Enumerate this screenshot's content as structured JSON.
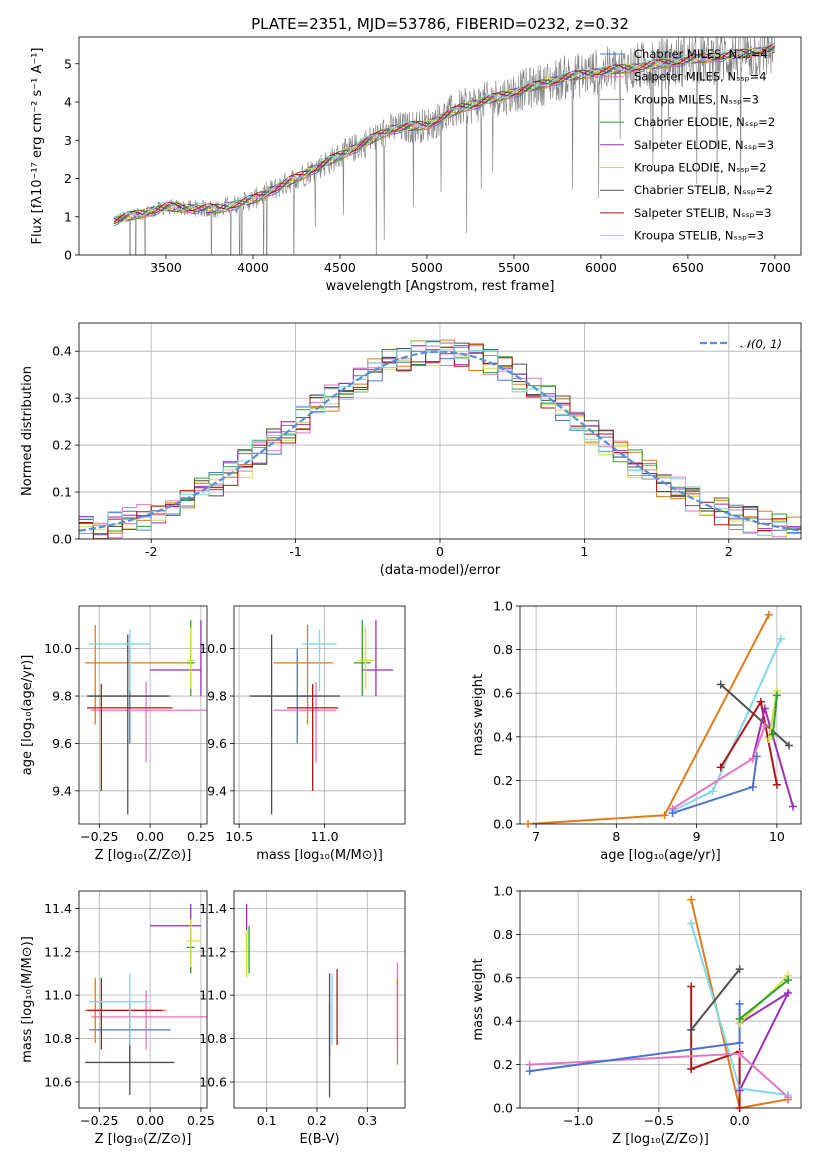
{
  "figure": {
    "title": "PLATE=2351, MJD=53786, FIBERID=0232, z=0.32"
  },
  "chart_data": [
    {
      "id": "spectrum",
      "type": "line",
      "xlabel": "wavelength [Angstrom, rest frame]",
      "ylabel": "Flux [fλ10⁻¹⁷ erg cm⁻² s⁻¹ A⁻¹]",
      "xlim": [
        3000,
        7150
      ],
      "ylim": [
        0,
        5.7
      ],
      "xticks": [
        3500,
        4000,
        4500,
        5000,
        5500,
        6000,
        6500,
        7000
      ],
      "yticks": [
        0,
        1,
        2,
        3,
        4,
        5
      ],
      "grid": false,
      "legend_location": "upper right",
      "data_color": "#808080",
      "data_curve": {
        "x": [
          3200,
          3500,
          3800,
          4000,
          4200,
          4500,
          4800,
          5000,
          5200,
          5500,
          5800,
          6000,
          6200,
          6500,
          6800,
          7000
        ],
        "y": [
          0.9,
          1.25,
          1.2,
          1.45,
          1.9,
          2.6,
          3.3,
          3.4,
          3.85,
          4.25,
          4.65,
          4.8,
          4.9,
          5.1,
          5.25,
          5.4
        ]
      },
      "series": [
        {
          "name": "Chabrier MILES, N_SSP=4",
          "color": "#4c72d0"
        },
        {
          "name": "Salpeter MILES, N_SSP=4",
          "color": "#e377c2"
        },
        {
          "name": "Kroupa MILES, N_SSP=3",
          "color": "#e07b1a"
        },
        {
          "name": "Chabrier ELODIE, N_SSP=2",
          "color": "#2ca02c"
        },
        {
          "name": "Salpeter ELODIE, N_SSP=3",
          "color": "#9b30b5"
        },
        {
          "name": "Kroupa ELODIE, N_SSP=2",
          "color": "#d4e04a"
        },
        {
          "name": "Chabrier STELIB, N_SSP=2",
          "color": "#505050"
        },
        {
          "name": "Salpeter STELIB, N_SSP=3",
          "color": "#b01515"
        },
        {
          "name": "Kroupa STELIB, N_SSP=3",
          "color": "#80d8e8"
        }
      ]
    },
    {
      "id": "residuals",
      "type": "line",
      "xlabel": "(data-model)/error",
      "ylabel": "Normed distribution",
      "xlim": [
        -2.5,
        2.5
      ],
      "ylim": [
        0,
        0.46
      ],
      "xticks": [
        -2,
        -1,
        0,
        1,
        2
      ],
      "yticks": [
        0.0,
        0.1,
        0.2,
        0.3,
        0.4
      ],
      "grid": true,
      "legend_location": "upper right",
      "reference": {
        "name": "𝒩(0, 1)",
        "mean": 0,
        "sigma": 1,
        "color": "#5b8fd6"
      }
    },
    {
      "id": "age_vs_Z",
      "type": "scatter",
      "xlabel": "Z [log₁₀(Z/Z⊙)]",
      "ylabel": "age  [log₁₀(age/yr)]",
      "xlim": [
        -0.35,
        0.28
      ],
      "ylim": [
        9.26,
        10.18
      ],
      "xticks": [
        -0.25,
        0.0,
        0.25
      ],
      "xticklabels": [
        "−0.25",
        "0.00",
        "0.25"
      ],
      "yticks": [
        9.4,
        9.6,
        9.8,
        10.0
      ],
      "yticklabels": [
        "9.4",
        "9.6",
        "9.8",
        "10.0"
      ],
      "grid": true,
      "points": [
        {
          "color": "#4c72d0",
          "x": -0.1,
          "xerr": [
            0.2,
            0.2
          ],
          "y": 9.8,
          "yerr": [
            0.2,
            0.2
          ]
        },
        {
          "color": "#e377c2",
          "x": -0.02,
          "xerr": [
            0.27,
            0.3
          ],
          "y": 9.74,
          "yerr": [
            0.22,
            0.12
          ]
        },
        {
          "color": "#e07b1a",
          "x": -0.27,
          "xerr": [
            0.05,
            0.45
          ],
          "y": 9.94,
          "yerr": [
            0.26,
            0.16
          ]
        },
        {
          "color": "#2ca02c",
          "x": 0.2,
          "xerr": [
            0.02,
            0.02
          ],
          "y": 9.94,
          "yerr": [
            0.14,
            0.18
          ]
        },
        {
          "color": "#9b30b5",
          "x": 0.25,
          "xerr": [
            0.25,
            0.0
          ],
          "y": 9.91,
          "yerr": [
            0.11,
            0.21
          ]
        },
        {
          "color": "#d4e04a",
          "x": 0.2,
          "xerr": [
            0.02,
            0.02
          ],
          "y": 9.95,
          "yerr": [
            0.12,
            0.14
          ]
        },
        {
          "color": "#505050",
          "x": -0.11,
          "xerr": [
            0.2,
            0.2
          ],
          "y": 9.8,
          "yerr": [
            0.5,
            0.26
          ]
        },
        {
          "color": "#b01515",
          "x": -0.24,
          "xerr": [
            0.07,
            0.35
          ],
          "y": 9.75,
          "yerr": [
            0.35,
            0.1
          ]
        },
        {
          "color": "#80d8e8",
          "x": -0.1,
          "xerr": [
            0.2,
            0.1
          ],
          "y": 10.02,
          "yerr": [
            0.2,
            0.06
          ]
        }
      ]
    },
    {
      "id": "age_vs_mass",
      "type": "scatter",
      "xlabel": "mass [log₁₀(M/M⊙)]",
      "ylabel": "",
      "xlim": [
        10.47,
        11.47
      ],
      "ylim": [
        9.26,
        10.18
      ],
      "xticks": [
        10.5,
        11.0
      ],
      "xticklabels": [
        "10.5",
        "11.0"
      ],
      "yticks": [
        9.4,
        9.6,
        9.8,
        10.0
      ],
      "yticklabels": [
        "9.4",
        "9.6",
        "9.8",
        "10.0"
      ],
      "grid": true,
      "points": [
        {
          "color": "#4c72d0",
          "x": 10.84,
          "xerr": [
            0.26,
            0.14
          ],
          "y": 9.8,
          "yerr": [
            0.2,
            0.2
          ]
        },
        {
          "color": "#e377c2",
          "x": 10.95,
          "xerr": [
            0.25,
            0.12
          ],
          "y": 9.74,
          "yerr": [
            0.22,
            0.12
          ]
        },
        {
          "color": "#e07b1a",
          "x": 10.9,
          "xerr": [
            0.2,
            0.15
          ],
          "y": 9.94,
          "yerr": [
            0.26,
            0.16
          ]
        },
        {
          "color": "#2ca02c",
          "x": 11.22,
          "xerr": [
            0.05,
            0.05
          ],
          "y": 9.94,
          "yerr": [
            0.14,
            0.18
          ]
        },
        {
          "color": "#9b30b5",
          "x": 11.3,
          "xerr": [
            0.08,
            0.1
          ],
          "y": 9.91,
          "yerr": [
            0.11,
            0.21
          ]
        },
        {
          "color": "#d4e04a",
          "x": 11.24,
          "xerr": [
            0.05,
            0.05
          ],
          "y": 9.95,
          "yerr": [
            0.12,
            0.14
          ]
        },
        {
          "color": "#505050",
          "x": 10.69,
          "xerr": [
            0.13,
            0.4
          ],
          "y": 9.8,
          "yerr": [
            0.5,
            0.26
          ]
        },
        {
          "color": "#b01515",
          "x": 10.93,
          "xerr": [
            0.15,
            0.15
          ],
          "y": 9.75,
          "yerr": [
            0.35,
            0.1
          ]
        },
        {
          "color": "#80d8e8",
          "x": 10.97,
          "xerr": [
            0.1,
            0.1
          ],
          "y": 10.02,
          "yerr": [
            0.2,
            0.06
          ]
        }
      ]
    },
    {
      "id": "weight_vs_age",
      "type": "line",
      "xlabel": "age  [log₁₀(age/yr)]",
      "ylabel": "mass weight",
      "xlim": [
        6.8,
        10.3
      ],
      "ylim": [
        0,
        1.0
      ],
      "xticks": [
        7,
        8,
        9,
        10
      ],
      "yticks": [
        0.0,
        0.2,
        0.4,
        0.6,
        0.8,
        1.0
      ],
      "grid": true,
      "series": [
        {
          "color": "#e07b1a",
          "x": [
            6.9,
            8.6,
            9.9
          ],
          "y": [
            0.0,
            0.04,
            0.96
          ]
        },
        {
          "color": "#80d8e8",
          "x": [
            8.7,
            9.2,
            10.05
          ],
          "y": [
            0.06,
            0.15,
            0.85
          ]
        },
        {
          "color": "#505050",
          "x": [
            9.3,
            10.15
          ],
          "y": [
            0.64,
            0.36
          ]
        },
        {
          "color": "#b01515",
          "x": [
            9.3,
            9.8,
            10.0
          ],
          "y": [
            0.26,
            0.56,
            0.18
          ]
        },
        {
          "color": "#9b30b5",
          "x": [
            9.7,
            9.85,
            10.2
          ],
          "y": [
            0.3,
            0.53,
            0.08
          ]
        },
        {
          "color": "#d4e04a",
          "x": [
            9.9,
            10.0
          ],
          "y": [
            0.39,
            0.61
          ]
        },
        {
          "color": "#2ca02c",
          "x": [
            9.95,
            10.0
          ],
          "y": [
            0.41,
            0.59
          ]
        },
        {
          "color": "#e377c2",
          "x": [
            8.7,
            9.7,
            9.85
          ],
          "y": [
            0.07,
            0.3,
            0.45
          ]
        },
        {
          "color": "#4c72d0",
          "x": [
            8.7,
            9.7,
            9.75
          ],
          "y": [
            0.05,
            0.17,
            0.31
          ]
        }
      ]
    },
    {
      "id": "mass_vs_Z",
      "type": "scatter",
      "xlabel": "Z [log₁₀(Z/Z⊙)]",
      "ylabel": "mass [log₁₀(M/M⊙)]",
      "xlim": [
        -0.35,
        0.28
      ],
      "ylim": [
        10.48,
        11.48
      ],
      "xticks": [
        -0.25,
        0.0,
        0.25
      ],
      "xticklabels": [
        "−0.25",
        "0.00",
        "0.25"
      ],
      "yticks": [
        10.6,
        10.8,
        11.0,
        11.2,
        11.4
      ],
      "yticklabels": [
        "10.6",
        "10.8",
        "11.0",
        "11.2",
        "11.4"
      ],
      "grid": true,
      "points": [
        {
          "color": "#4c72d0",
          "x": -0.1,
          "xerr": [
            0.2,
            0.2
          ],
          "y": 10.84,
          "yerr": [
            0.16,
            0.13
          ]
        },
        {
          "color": "#e377c2",
          "x": -0.02,
          "xerr": [
            0.27,
            0.3
          ],
          "y": 10.9,
          "yerr": [
            0.15,
            0.12
          ]
        },
        {
          "color": "#e07b1a",
          "x": -0.27,
          "xerr": [
            0.05,
            0.35
          ],
          "y": 10.93,
          "yerr": [
            0.15,
            0.15
          ]
        },
        {
          "color": "#2ca02c",
          "x": 0.2,
          "xerr": [
            0.02,
            0.02
          ],
          "y": 11.22,
          "yerr": [
            0.12,
            0.1
          ]
        },
        {
          "color": "#9b30b5",
          "x": 0.2,
          "xerr": [
            0.2,
            0.05
          ],
          "y": 11.32,
          "yerr": [
            0.12,
            0.1
          ]
        },
        {
          "color": "#d4e04a",
          "x": 0.2,
          "xerr": [
            0.02,
            0.05
          ],
          "y": 11.25,
          "yerr": [
            0.12,
            0.1
          ]
        },
        {
          "color": "#505050",
          "x": -0.1,
          "xerr": [
            0.22,
            0.22
          ],
          "y": 10.69,
          "yerr": [
            0.15,
            0.27
          ]
        },
        {
          "color": "#b01515",
          "x": -0.24,
          "xerr": [
            0.07,
            0.3
          ],
          "y": 10.93,
          "yerr": [
            0.18,
            0.15
          ]
        },
        {
          "color": "#80d8e8",
          "x": -0.1,
          "xerr": [
            0.2,
            0.1
          ],
          "y": 10.97,
          "yerr": [
            0.2,
            0.13
          ]
        }
      ]
    },
    {
      "id": "mass_vs_ebv",
      "type": "scatter",
      "xlabel": "E(B-V)",
      "ylabel": "",
      "xlim": [
        0.035,
        0.375
      ],
      "ylim": [
        10.48,
        11.48
      ],
      "xticks": [
        0.1,
        0.2,
        0.3
      ],
      "xticklabels": [
        "0.1",
        "0.2",
        "0.3"
      ],
      "yticks": [
        10.6,
        10.8,
        11.0,
        11.2,
        11.4
      ],
      "yticklabels": [
        "10.6",
        "10.8",
        "11.0",
        "11.2",
        "11.4"
      ],
      "grid": true,
      "points": [
        {
          "color": "#4c72d0",
          "x": 0.225,
          "xerr": [
            0,
            0
          ],
          "y": 10.84,
          "yerr": [
            0.12,
            0.13
          ]
        },
        {
          "color": "#e377c2",
          "x": 0.36,
          "xerr": [
            0,
            0
          ],
          "y": 10.9,
          "yerr": [
            0.12,
            0.25
          ]
        },
        {
          "color": "#e07b1a",
          "x": 0.36,
          "xerr": [
            0,
            0
          ],
          "y": 10.88,
          "yerr": [
            0.2,
            0.2
          ]
        },
        {
          "color": "#2ca02c",
          "x": 0.065,
          "xerr": [
            0,
            0
          ],
          "y": 11.22,
          "yerr": [
            0.12,
            0.1
          ]
        },
        {
          "color": "#9b30b5",
          "x": 0.06,
          "xerr": [
            0,
            0
          ],
          "y": 11.32,
          "yerr": [
            0.12,
            0.1
          ]
        },
        {
          "color": "#d4e04a",
          "x": 0.06,
          "xerr": [
            0,
            0
          ],
          "y": 11.2,
          "yerr": [
            0.12,
            0.1
          ]
        },
        {
          "color": "#505050",
          "x": 0.225,
          "xerr": [
            0,
            0
          ],
          "y": 10.8,
          "yerr": [
            0.27,
            0.3
          ]
        },
        {
          "color": "#b01515",
          "x": 0.24,
          "xerr": [
            0,
            0
          ],
          "y": 10.95,
          "yerr": [
            0.18,
            0.17
          ]
        },
        {
          "color": "#80d8e8",
          "x": 0.23,
          "xerr": [
            0,
            0
          ],
          "y": 10.97,
          "yerr": [
            0.2,
            0.13
          ]
        }
      ]
    },
    {
      "id": "weight_vs_Z",
      "type": "line",
      "xlabel": "Z [log₁₀(Z/Z⊙)]",
      "ylabel": "mass weight",
      "xlim": [
        -1.36,
        0.38
      ],
      "ylim": [
        0,
        1.0
      ],
      "xticks": [
        -1.0,
        -0.5,
        0.0
      ],
      "xticklabels": [
        "−1.0",
        "−0.5",
        "0.0"
      ],
      "yticks": [
        0.0,
        0.2,
        0.4,
        0.6,
        0.8,
        1.0
      ],
      "grid": true,
      "series": [
        {
          "color": "#e07b1a",
          "x": [
            -0.3,
            0.0,
            0.3
          ],
          "y": [
            0.96,
            0.0,
            0.04
          ]
        },
        {
          "color": "#80d8e8",
          "x": [
            -0.3,
            0.0,
            0.3
          ],
          "y": [
            0.85,
            0.09,
            0.06
          ]
        },
        {
          "color": "#505050",
          "x": [
            -0.3,
            0.0
          ],
          "y": [
            0.36,
            0.64
          ]
        },
        {
          "color": "#b01515",
          "x": [
            -0.3,
            -0.3,
            0.0,
            0.0
          ],
          "y": [
            0.56,
            0.18,
            0.26,
            0.0
          ]
        },
        {
          "color": "#9b30b5",
          "x": [
            0.0,
            0.3,
            0.0
          ],
          "y": [
            0.08,
            0.53,
            0.39
          ]
        },
        {
          "color": "#d4e04a",
          "x": [
            0.0,
            0.3
          ],
          "y": [
            0.39,
            0.61
          ]
        },
        {
          "color": "#2ca02c",
          "x": [
            0.0,
            0.3
          ],
          "y": [
            0.41,
            0.59
          ]
        },
        {
          "color": "#e377c2",
          "x": [
            -1.3,
            0.0,
            0.3
          ],
          "y": [
            0.2,
            0.25,
            0.05
          ]
        },
        {
          "color": "#4c72d0",
          "x": [
            -1.3,
            0.0,
            0.0
          ],
          "y": [
            0.17,
            0.3,
            0.48
          ]
        }
      ]
    }
  ]
}
